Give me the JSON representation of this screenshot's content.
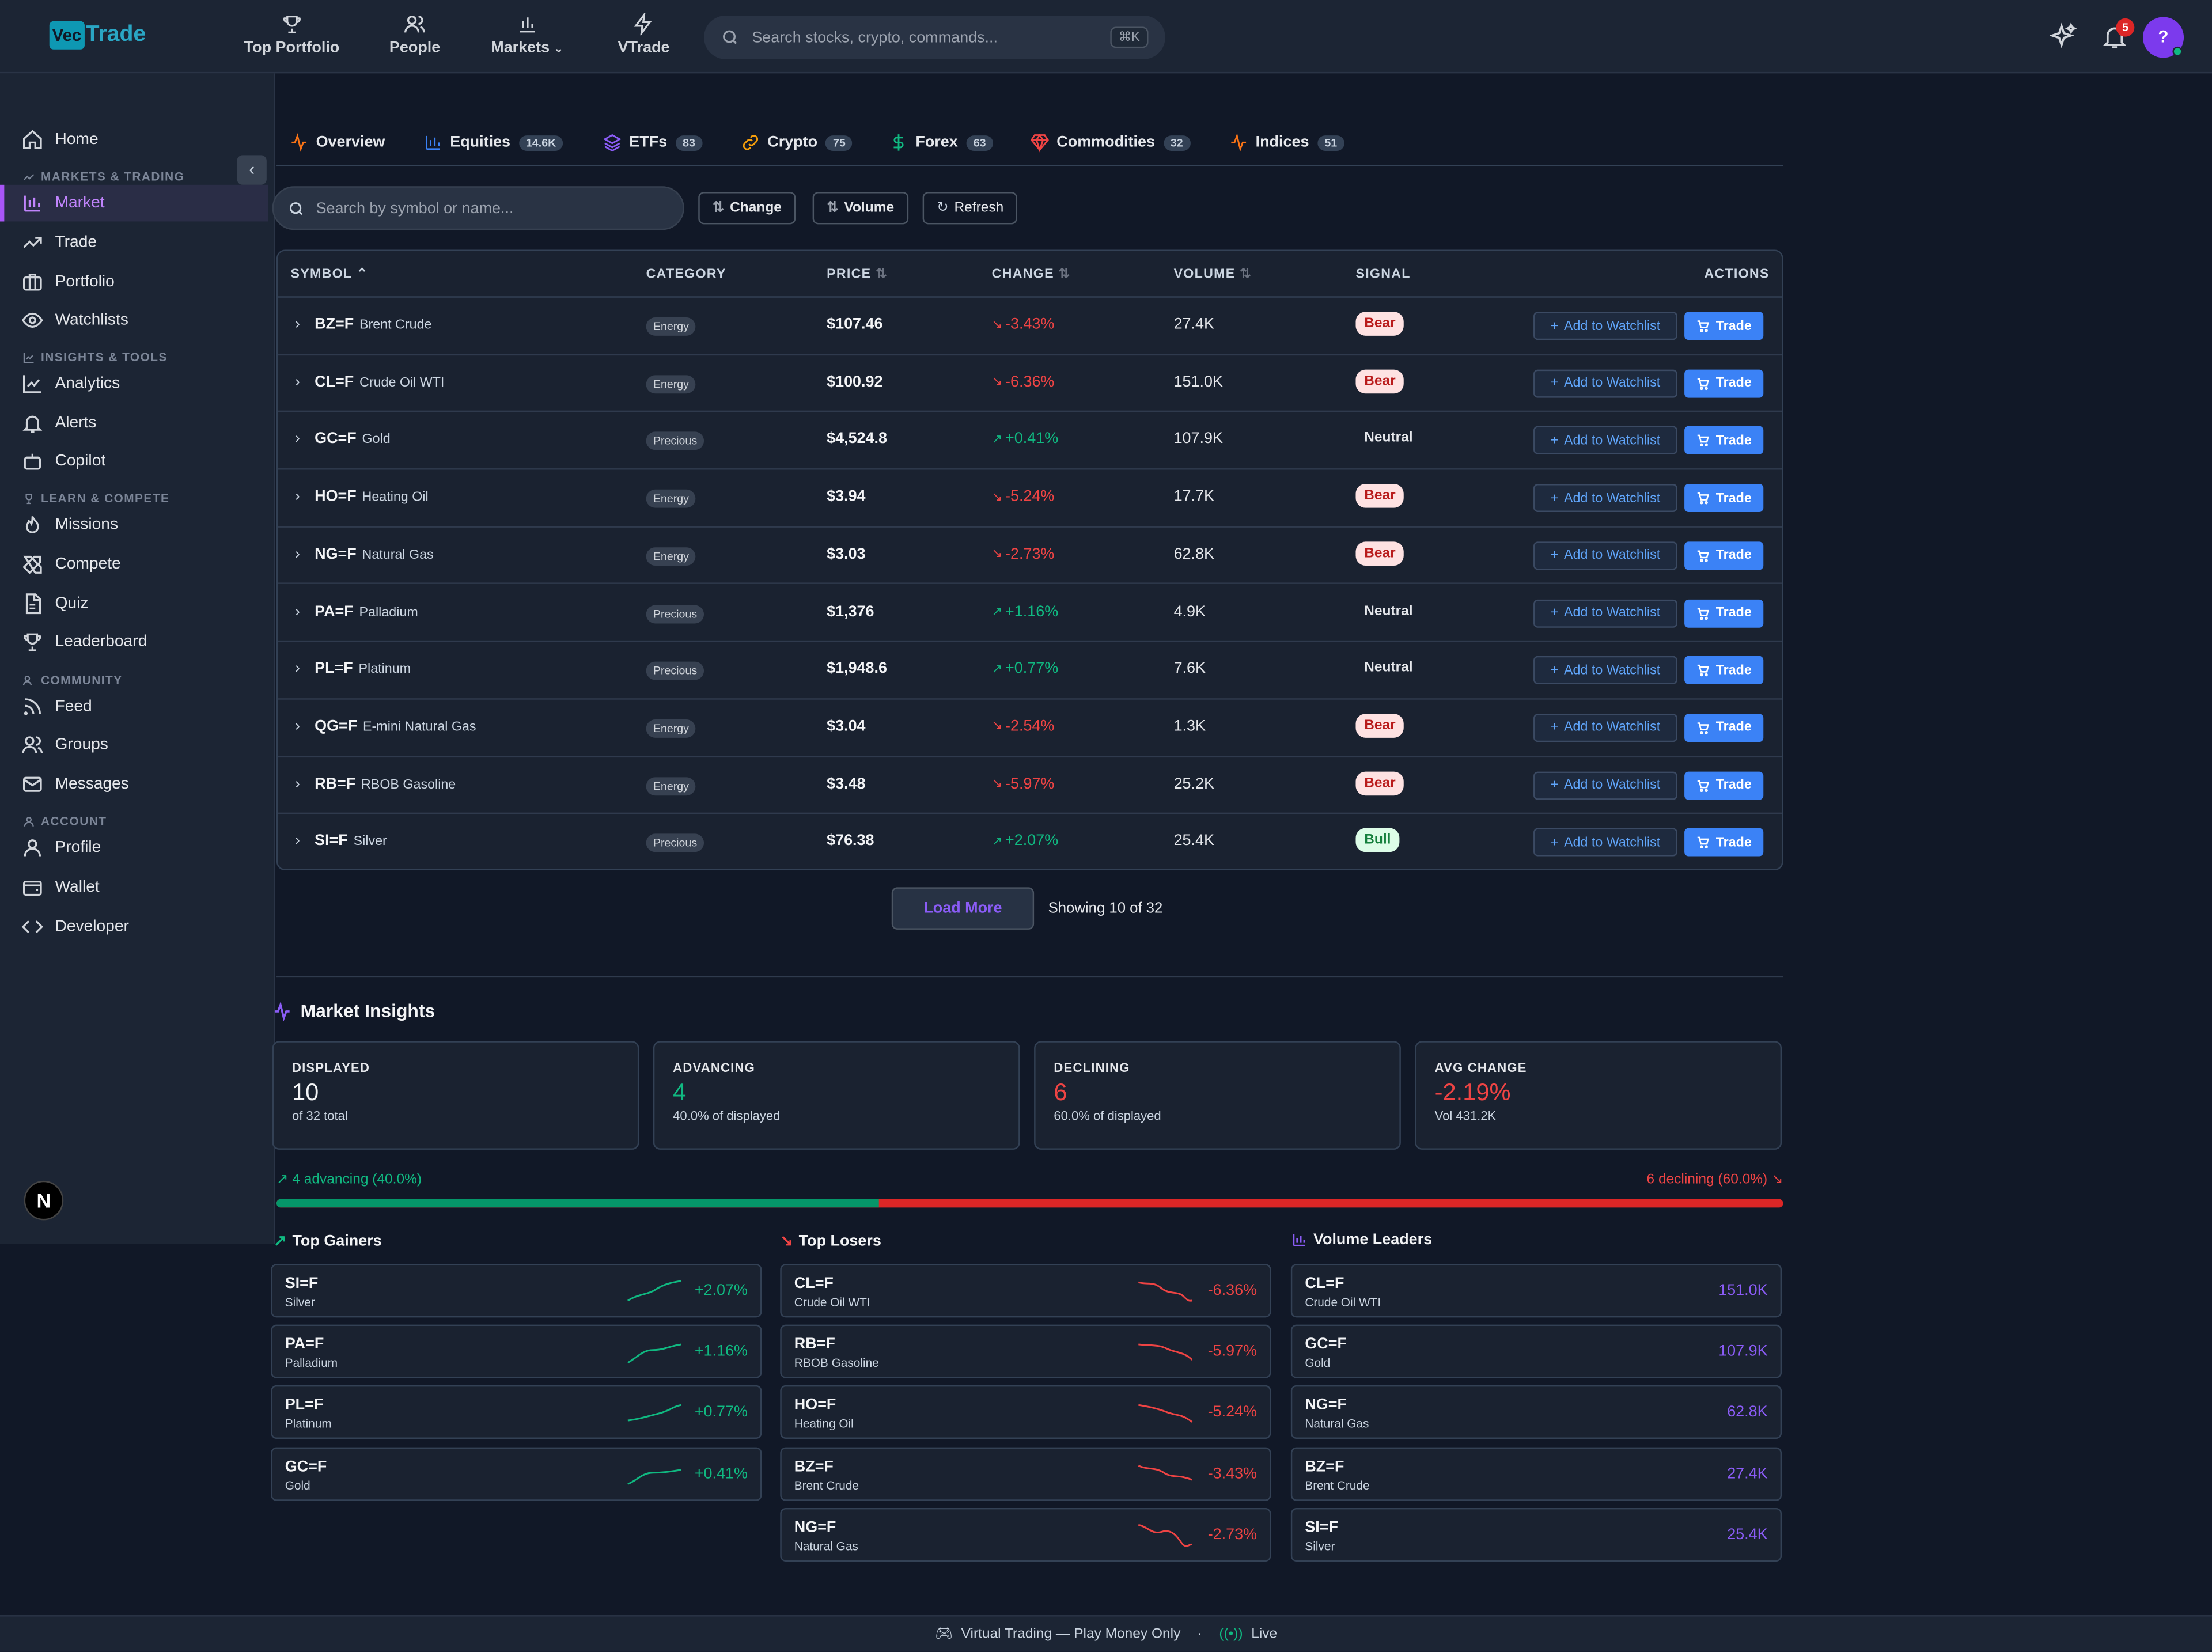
{
  "brand": {
    "vec": "Vec",
    "trade": "Trade"
  },
  "topnav": [
    {
      "label": "Top Portfolio",
      "icon": "trophy-icon"
    },
    {
      "label": "People",
      "icon": "people-icon"
    },
    {
      "label": "Markets",
      "icon": "bar-chart-icon"
    },
    {
      "label": "VTrade",
      "icon": "bolt-icon"
    }
  ],
  "search": {
    "placeholder": "Search stocks, crypto, commands...",
    "shortcut": "⌘K"
  },
  "notifications": {
    "count": "5"
  },
  "avatar": {
    "initial": "?"
  },
  "sidebar": {
    "home": "Home",
    "sections": {
      "markets": "MARKETS & TRADING",
      "insights": "INSIGHTS & TOOLS",
      "learn": "LEARN & COMPETE",
      "community": "COMMUNITY",
      "account": "ACCOUNT"
    },
    "items": {
      "market": "Market",
      "trade": "Trade",
      "portfolio": "Portfolio",
      "watchlists": "Watchlists",
      "analytics": "Analytics",
      "alerts": "Alerts",
      "copilot": "Copilot",
      "missions": "Missions",
      "compete": "Compete",
      "quiz": "Quiz",
      "leaderboard": "Leaderboard",
      "feed": "Feed",
      "groups": "Groups",
      "messages": "Messages",
      "profile": "Profile",
      "wallet": "Wallet",
      "developer": "Developer"
    }
  },
  "tabs": [
    {
      "label": "Overview",
      "count": ""
    },
    {
      "label": "Equities",
      "count": "14.6K"
    },
    {
      "label": "ETFs",
      "count": "83"
    },
    {
      "label": "Crypto",
      "count": "75"
    },
    {
      "label": "Forex",
      "count": "63"
    },
    {
      "label": "Commodities",
      "count": "32"
    },
    {
      "label": "Indices",
      "count": "51"
    }
  ],
  "filter": {
    "placeholder": "Search by symbol or name...",
    "change": "Change",
    "volume": "Volume",
    "refresh": "Refresh"
  },
  "table": {
    "headers": {
      "symbol": "SYMBOL",
      "category": "CATEGORY",
      "price": "PRICE",
      "change": "CHANGE",
      "volume": "VOLUME",
      "signal": "SIGNAL",
      "actions": "ACTIONS"
    },
    "watch_label": "Add to Watchlist",
    "trade_label": "Trade",
    "rows": [
      {
        "symbol": "BZ=F",
        "name": "Brent Crude",
        "category": "Energy",
        "price": "$107.46",
        "change": "-3.43%",
        "volume": "27.4K",
        "signal": "Bear"
      },
      {
        "symbol": "CL=F",
        "name": "Crude Oil WTI",
        "category": "Energy",
        "price": "$100.92",
        "change": "-6.36%",
        "volume": "151.0K",
        "signal": "Bear"
      },
      {
        "symbol": "GC=F",
        "name": "Gold",
        "category": "Precious",
        "price": "$4,524.8",
        "change": "+0.41%",
        "volume": "107.9K",
        "signal": "Neutral"
      },
      {
        "symbol": "HO=F",
        "name": "Heating Oil",
        "category": "Energy",
        "price": "$3.94",
        "change": "-5.24%",
        "volume": "17.7K",
        "signal": "Bear"
      },
      {
        "symbol": "NG=F",
        "name": "Natural Gas",
        "category": "Energy",
        "price": "$3.03",
        "change": "-2.73%",
        "volume": "62.8K",
        "signal": "Bear"
      },
      {
        "symbol": "PA=F",
        "name": "Palladium",
        "category": "Precious",
        "price": "$1,376",
        "change": "+1.16%",
        "volume": "4.9K",
        "signal": "Neutral"
      },
      {
        "symbol": "PL=F",
        "name": "Platinum",
        "category": "Precious",
        "price": "$1,948.6",
        "change": "+0.77%",
        "volume": "7.6K",
        "signal": "Neutral"
      },
      {
        "symbol": "QG=F",
        "name": "E-mini Natural Gas",
        "category": "Energy",
        "price": "$3.04",
        "change": "-2.54%",
        "volume": "1.3K",
        "signal": "Bear"
      },
      {
        "symbol": "RB=F",
        "name": "RBOB Gasoline",
        "category": "Energy",
        "price": "$3.48",
        "change": "-5.97%",
        "volume": "25.2K",
        "signal": "Bear"
      },
      {
        "symbol": "SI=F",
        "name": "Silver",
        "category": "Precious",
        "price": "$76.38",
        "change": "+2.07%",
        "volume": "25.4K",
        "signal": "Bull"
      }
    ]
  },
  "pagination": {
    "load_more": "Load More",
    "showing": "Showing 10 of 32"
  },
  "insights": {
    "title": "Market Insights",
    "cards": [
      {
        "label": "DISPLAYED",
        "value": "10",
        "sub": "of 32 total"
      },
      {
        "label": "ADVANCING",
        "value": "4",
        "sub": "40.0% of displayed"
      },
      {
        "label": "DECLINING",
        "value": "6",
        "sub": "60.0% of displayed"
      },
      {
        "label": "AVG CHANGE",
        "value": "-2.19%",
        "sub": "Vol 431.2K"
      }
    ],
    "advancing_label": "4 advancing (40.0%)",
    "declining_label": "6 declining (60.0%)",
    "advancing_fraction": 0.4,
    "colors": {
      "green": "#10b981",
      "red": "#ef4444",
      "purple": "#8b5cf6",
      "accent": "#3b82f6"
    }
  },
  "gainers": {
    "title": "Top Gainers",
    "items": [
      {
        "symbol": "SI=F",
        "name": "Silver",
        "value": "+2.07%"
      },
      {
        "symbol": "PA=F",
        "name": "Palladium",
        "value": "+1.16%"
      },
      {
        "symbol": "PL=F",
        "name": "Platinum",
        "value": "+0.77%"
      },
      {
        "symbol": "GC=F",
        "name": "Gold",
        "value": "+0.41%"
      }
    ]
  },
  "losers": {
    "title": "Top Losers",
    "items": [
      {
        "symbol": "CL=F",
        "name": "Crude Oil WTI",
        "value": "-6.36%"
      },
      {
        "symbol": "RB=F",
        "name": "RBOB Gasoline",
        "value": "-5.97%"
      },
      {
        "symbol": "HO=F",
        "name": "Heating Oil",
        "value": "-5.24%"
      },
      {
        "symbol": "BZ=F",
        "name": "Brent Crude",
        "value": "-3.43%"
      },
      {
        "symbol": "NG=F",
        "name": "Natural Gas",
        "value": "-2.73%"
      }
    ]
  },
  "leaders": {
    "title": "Volume Leaders",
    "items": [
      {
        "symbol": "CL=F",
        "name": "Crude Oil WTI",
        "value": "151.0K"
      },
      {
        "symbol": "GC=F",
        "name": "Gold",
        "value": "107.9K"
      },
      {
        "symbol": "NG=F",
        "name": "Natural Gas",
        "value": "62.8K"
      },
      {
        "symbol": "BZ=F",
        "name": "Brent Crude",
        "value": "27.4K"
      },
      {
        "symbol": "SI=F",
        "name": "Silver",
        "value": "25.4K"
      }
    ]
  },
  "footer": {
    "text": "Virtual Trading — Play Money Only",
    "sep": "·",
    "live": "Live"
  },
  "nextjs": {
    "letter": "N"
  }
}
